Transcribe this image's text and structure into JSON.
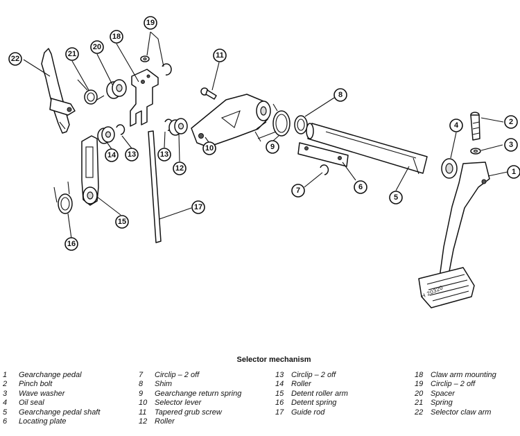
{
  "figure": {
    "caption": "Selector mechanism",
    "reference": "H 20320"
  },
  "callouts": [
    "1",
    "2",
    "3",
    "4",
    "5",
    "6",
    "7",
    "8",
    "9",
    "10",
    "11",
    "12",
    "13",
    "13",
    "14",
    "15",
    "16",
    "17",
    "18",
    "19",
    "20",
    "21",
    "22"
  ],
  "legend": [
    [
      {
        "num": "1",
        "label": "Gearchange pedal"
      },
      {
        "num": "2",
        "label": "Pinch bolt"
      },
      {
        "num": "3",
        "label": "Wave washer"
      },
      {
        "num": "4",
        "label": "Oil seal"
      },
      {
        "num": "5",
        "label": "Gearchange pedal shaft"
      },
      {
        "num": "6",
        "label": "Locating plate"
      }
    ],
    [
      {
        "num": "7",
        "label": "Circlip – 2 off"
      },
      {
        "num": "8",
        "label": "Shim"
      },
      {
        "num": "9",
        "label": "Gearchange return spring"
      },
      {
        "num": "10",
        "label": "Selector lever"
      },
      {
        "num": "11",
        "label": "Tapered grub screw"
      },
      {
        "num": "12",
        "label": "Roller"
      }
    ],
    [
      {
        "num": "13",
        "label": "Circlip – 2 off"
      },
      {
        "num": "14",
        "label": "Roller"
      },
      {
        "num": "15",
        "label": "Detent roller arm"
      },
      {
        "num": "16",
        "label": "Detent spring"
      },
      {
        "num": "17",
        "label": "Guide rod"
      }
    ],
    [
      {
        "num": "18",
        "label": "Claw arm mounting"
      },
      {
        "num": "19",
        "label": "Circlip – 2 off"
      },
      {
        "num": "20",
        "label": "Spacer"
      },
      {
        "num": "21",
        "label": "Spring"
      },
      {
        "num": "22",
        "label": "Selector claw arm"
      }
    ]
  ]
}
